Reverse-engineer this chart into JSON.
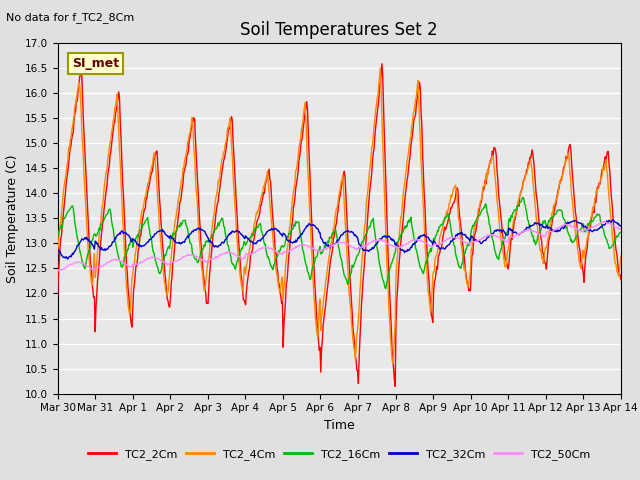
{
  "title": "Soil Temperatures Set 2",
  "subtitle": "No data for f_TC2_8Cm",
  "xlabel": "Time",
  "ylabel": "Soil Temperature (C)",
  "ylim": [
    10.0,
    17.0
  ],
  "yticks": [
    10.0,
    10.5,
    11.0,
    11.5,
    12.0,
    12.5,
    13.0,
    13.5,
    14.0,
    14.5,
    15.0,
    15.5,
    16.0,
    16.5,
    17.0
  ],
  "bg_color": "#e0e0e0",
  "plot_bg_color": "#e8e8e8",
  "grid_color": "#ffffff",
  "legend_label": "SI_met",
  "legend_bg": "#ffffcc",
  "legend_border": "#999900",
  "series_colors": {
    "TC2_2Cm": "#ff0000",
    "TC2_4Cm": "#ff8800",
    "TC2_16Cm": "#00bb00",
    "TC2_32Cm": "#0000cc",
    "TC2_50Cm": "#ff88ff"
  },
  "date_labels": [
    "Mar 30",
    "Mar 31",
    "Apr 1",
    "Apr 2",
    "Apr 3",
    "Apr 4",
    "Apr 5",
    "Apr 6",
    "Apr 7",
    "Apr 8",
    "Apr 9",
    "Apr 10",
    "Apr 11",
    "Apr 12",
    "Apr 13",
    "Apr 14"
  ],
  "n_days": 15,
  "points_per_day": 48
}
